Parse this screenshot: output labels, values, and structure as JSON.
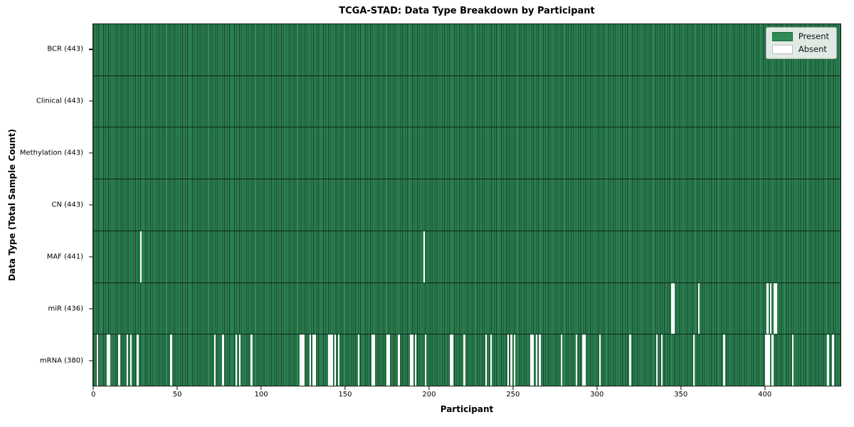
{
  "chart_data": {
    "type": "heatmap",
    "title": "TCGA-STAD: Data Type Breakdown by Participant",
    "xlabel": "Participant",
    "ylabel": "Data Type (Total Sample Count)",
    "x_ticks": [
      0,
      50,
      100,
      150,
      200,
      250,
      300,
      350,
      400
    ],
    "x_axis_units": 446,
    "n_participants": 443,
    "grid": false,
    "legend": {
      "position": "upper right",
      "entries": [
        {
          "label": "Present",
          "color": "#2e8b57"
        },
        {
          "label": "Absent",
          "color": "#ffffff"
        }
      ]
    },
    "colors": {
      "present": "#2e8b57",
      "stripe_edge": "#173f28",
      "absent": "#ffffff"
    },
    "rows": [
      {
        "name": "bcr",
        "data_type": "BCR",
        "label": "BCR (443)",
        "present_count": 443,
        "absent_participants": []
      },
      {
        "name": "clinical",
        "data_type": "Clinical",
        "label": "Clinical (443)",
        "present_count": 443,
        "absent_participants": []
      },
      {
        "name": "methylation",
        "data_type": "Methylation",
        "label": "Methylation (443)",
        "present_count": 443,
        "absent_participants": []
      },
      {
        "name": "cn",
        "data_type": "CN",
        "label": "CN (443)",
        "present_count": 443,
        "absent_participants": []
      },
      {
        "name": "maf",
        "data_type": "MAF",
        "label": "MAF (441)",
        "present_count": 441,
        "absent_participants": [
          28,
          197
        ]
      },
      {
        "name": "mir",
        "data_type": "miR",
        "label": "miR (436)",
        "present_count": 436,
        "absent_participants": [
          345,
          346,
          361,
          402,
          404,
          406,
          407
        ]
      },
      {
        "name": "mrna",
        "data_type": "mRNA",
        "label": "mRNA (380)",
        "present_count": 380,
        "absent_participants": [
          2,
          8,
          9,
          15,
          20,
          22,
          26,
          46,
          72,
          77,
          85,
          87,
          94,
          123,
          124,
          125,
          129,
          131,
          132,
          140,
          141,
          142,
          144,
          146,
          158,
          166,
          167,
          175,
          176,
          182,
          189,
          190,
          192,
          198,
          213,
          214,
          221,
          234,
          237,
          247,
          249,
          251,
          261,
          262,
          264,
          266,
          279,
          288,
          292,
          293,
          302,
          320,
          336,
          339,
          358,
          376,
          401,
          402,
          403,
          405,
          417,
          438,
          441
        ]
      }
    ]
  }
}
